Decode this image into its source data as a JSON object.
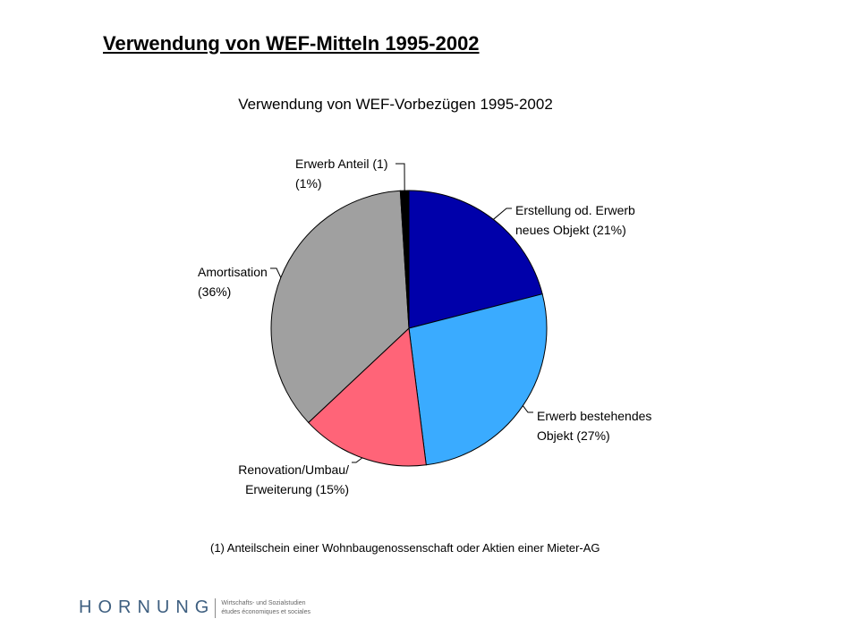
{
  "slide": {
    "title": "Verwendung von WEF-Mitteln 1995-2002"
  },
  "chart_data": {
    "type": "pie",
    "title": "Verwendung von WEF-Vorbezügen 1995-2002",
    "slices": [
      {
        "label": [
          "Erstellung od. Erwerb",
          "neues Objekt (21%)"
        ],
        "value": 21,
        "color": "#0000aa"
      },
      {
        "label": [
          "Erwerb bestehendes",
          "Objekt (27%)"
        ],
        "value": 27,
        "color": "#3aabff"
      },
      {
        "label": [
          "Renovation/Umbau/",
          "Erweiterung (15%)"
        ],
        "value": 15,
        "color": "#ff6478"
      },
      {
        "label": [
          "Amortisation",
          "(36%)"
        ],
        "value": 36,
        "color": "#a0a0a0"
      },
      {
        "label": [
          "Erwerb Anteil (1)",
          "(1%)"
        ],
        "value": 1,
        "color": "#000000"
      }
    ],
    "footnote": "(1) Anteilschein einer Wohnbaugenossenschaft oder Aktien einer Mieter-AG"
  },
  "footer": {
    "logo_text": "HORNUNG",
    "subtitle_line1": "Wirtschafts- und Sozialstudien",
    "subtitle_line2": "études économiques et sociales"
  }
}
